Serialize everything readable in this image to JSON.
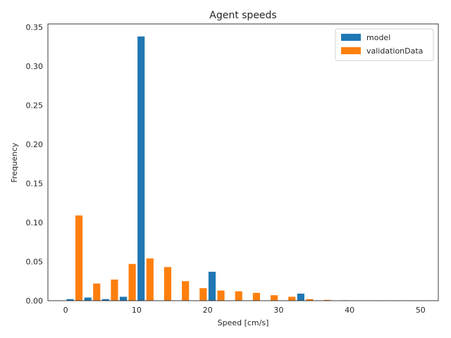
{
  "chart_data": {
    "type": "bar",
    "title": "Agent speeds",
    "xlabel": "Speed [cm/s]",
    "ylabel": "Frequency",
    "xlim": [
      -2.5,
      52.5
    ],
    "ylim": [
      0,
      0.354
    ],
    "xticks": [
      {
        "value": 0,
        "label": "0"
      },
      {
        "value": 10,
        "label": "10"
      },
      {
        "value": 20,
        "label": "20"
      },
      {
        "value": 30,
        "label": "30"
      },
      {
        "value": 40,
        "label": "40"
      },
      {
        "value": 50,
        "label": "50"
      }
    ],
    "yticks": [
      {
        "value": 0.0,
        "label": "0.00"
      },
      {
        "value": 0.05,
        "label": "0.05"
      },
      {
        "value": 0.1,
        "label": "0.10"
      },
      {
        "value": 0.15,
        "label": "0.15"
      },
      {
        "value": 0.2,
        "label": "0.20"
      },
      {
        "value": 0.25,
        "label": "0.25"
      },
      {
        "value": 0.3,
        "label": "0.30"
      },
      {
        "value": 0.35,
        "label": "0.35"
      }
    ],
    "grid": false,
    "legend": "top-right",
    "bin_width": 2.5,
    "bin_start": 0,
    "series": [
      {
        "name": "model",
        "color": "#1f77b4",
        "values": [
          0.002,
          0.004,
          0.002,
          0.005,
          0.338,
          0,
          0,
          0,
          0.037,
          0,
          0,
          0,
          0,
          0.009,
          0,
          0,
          0,
          0,
          0,
          0
        ]
      },
      {
        "name": "validationData",
        "color": "#ff7f0e",
        "values": [
          0.109,
          0.022,
          0.027,
          0.047,
          0.054,
          0.043,
          0.025,
          0.016,
          0.013,
          0.012,
          0.01,
          0.007,
          0.005,
          0.002,
          0.001,
          0.0005,
          0.0003,
          0.0002,
          0.0001,
          0.0001
        ]
      }
    ]
  }
}
